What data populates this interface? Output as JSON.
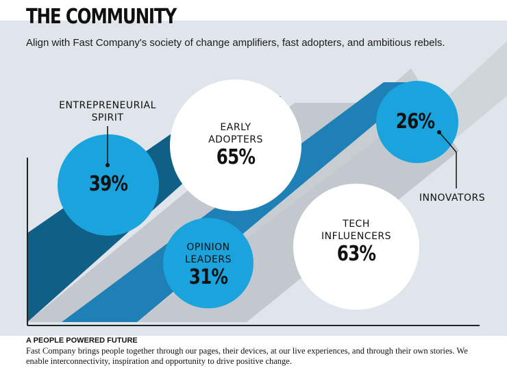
{
  "header": {
    "title": "THE COMMUNITY",
    "subtitle": "Align with Fast Company's society of change amplifiers, fast adopters, and ambitious rebels."
  },
  "colors": {
    "accent_blue": "#1aa3dc",
    "dark_blue": "#0f5f86",
    "mid_blue": "#1f80b5",
    "grey_band": "#c2c8cd",
    "light_grey_band": "#d0d5da",
    "panel_background": "#dfe5ea",
    "white_circle": "#ffffff"
  },
  "segments": [
    {
      "id": "entrepreneurial",
      "label_lines": [
        "ENTREPRENEURIAL",
        "SPIRIT"
      ],
      "value": "39%",
      "percent": 39,
      "circle_color": "blue"
    },
    {
      "id": "early-adopters",
      "label_lines": [
        "EARLY",
        "ADOPTERS"
      ],
      "value": "65%",
      "percent": 65,
      "circle_color": "white"
    },
    {
      "id": "opinion-leaders",
      "label_lines": [
        "OPINION",
        "LEADERS"
      ],
      "value": "31%",
      "percent": 31,
      "circle_color": "blue"
    },
    {
      "id": "tech-influencers",
      "label_lines": [
        "TECH",
        "INFLUENCERS"
      ],
      "value": "63%",
      "percent": 63,
      "circle_color": "white"
    },
    {
      "id": "innovators",
      "label_lines": [
        "INNOVATORS"
      ],
      "value": "26%",
      "percent": 26,
      "circle_color": "blue"
    }
  ],
  "footer": {
    "heading": "A PEOPLE POWERED FUTURE",
    "body": "Fast Company brings people together through our pages, their devices, at our live experiences, and through their own stories. We enable interconnectivity, inspiration and opportunity to drive positive change."
  }
}
